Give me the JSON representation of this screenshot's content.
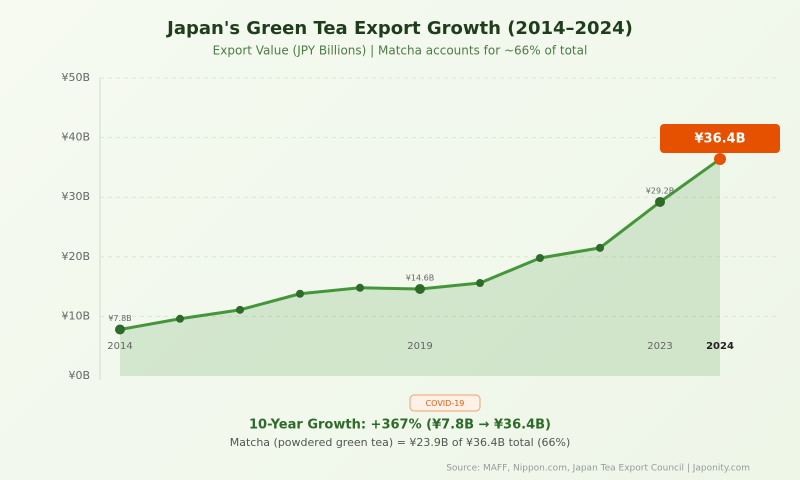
{
  "chart_data": {
    "type": "line",
    "title": "Japan's Green Tea Export Growth (2014–2024)",
    "subtitle": "Export Value (JPY Billions) | Matcha accounts for ~66% of total",
    "categories": [
      "2014",
      null,
      null,
      null,
      null,
      "2019",
      null,
      null,
      null,
      "2023",
      "2024"
    ],
    "values": [
      7.8,
      9.6,
      11.1,
      13.8,
      14.8,
      14.6,
      15.6,
      19.8,
      21.5,
      29.2,
      36.4
    ],
    "value_labels": [
      "¥7.8B",
      null,
      null,
      null,
      null,
      "¥14.6B",
      null,
      null,
      null,
      "¥29.2B",
      "¥36.4B"
    ],
    "color": "#45963b",
    "point_color": "#2e6b2a",
    "highlight_color": "#e65100",
    "ylim": [
      0,
      50
    ],
    "yticks": [
      {
        "value": 0,
        "label": "¥0B"
      },
      {
        "value": 10,
        "label": "¥10B"
      },
      {
        "value": 20,
        "label": "¥20B"
      },
      {
        "value": 30,
        "label": "¥30B"
      },
      {
        "value": 40,
        "label": "¥40B"
      },
      {
        "value": 50,
        "label": "¥50B"
      }
    ],
    "grid": true,
    "annotation": "COVID-19",
    "growth": "10-Year Growth: +367% (¥7.8B → ¥36.4B)",
    "note": "Matcha (powdered green tea) = ¥23.9B of ¥36.4B total (66%)",
    "source": "Source: MAFF, Nippon.com, Japan Tea Export Council | Japonity.com"
  }
}
